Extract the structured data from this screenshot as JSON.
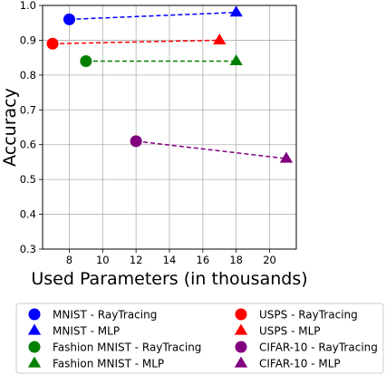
{
  "chart_data": {
    "type": "scatter",
    "title": "",
    "xlabel": "Used Parameters (in thousands)",
    "ylabel": "Accuracy",
    "xlim": [
      6.4,
      21.6
    ],
    "ylim": [
      0.3,
      1.0
    ],
    "xticks": [
      8,
      10,
      12,
      14,
      16,
      18,
      20
    ],
    "yticks": [
      0.3,
      0.4,
      0.5,
      0.6,
      0.7,
      0.8,
      0.9,
      1.0
    ],
    "grid": true,
    "legend_position": "bottom",
    "series": [
      {
        "name": "MNIST - RayTracing",
        "marker": "circle",
        "color": "#0000ff",
        "points": [
          {
            "x": 8,
            "y": 0.96
          }
        ]
      },
      {
        "name": "MNIST - MLP",
        "marker": "triangle",
        "color": "#0000ff",
        "points": [
          {
            "x": 18,
            "y": 0.98
          }
        ]
      },
      {
        "name": "Fashion MNIST - RayTracing",
        "marker": "circle",
        "color": "#008000",
        "points": [
          {
            "x": 9,
            "y": 0.84
          }
        ]
      },
      {
        "name": "Fashion MNIST - MLP",
        "marker": "triangle",
        "color": "#008000",
        "points": [
          {
            "x": 18,
            "y": 0.84
          }
        ]
      },
      {
        "name": "USPS - RayTracing",
        "marker": "circle",
        "color": "#ff0000",
        "points": [
          {
            "x": 7,
            "y": 0.89
          }
        ]
      },
      {
        "name": "USPS - MLP",
        "marker": "triangle",
        "color": "#ff0000",
        "points": [
          {
            "x": 17,
            "y": 0.9
          }
        ]
      },
      {
        "name": "CIFAR-10 - RayTracing",
        "marker": "circle",
        "color": "#800080",
        "points": [
          {
            "x": 12,
            "y": 0.61
          }
        ]
      },
      {
        "name": "CIFAR-10 - MLP",
        "marker": "triangle",
        "color": "#800080",
        "points": [
          {
            "x": 21,
            "y": 0.56
          }
        ]
      }
    ],
    "connectors": [
      {
        "from": "MNIST - RayTracing",
        "to": "MNIST - MLP",
        "color": "#0000ff",
        "style": "dashed"
      },
      {
        "from": "USPS - RayTracing",
        "to": "USPS - MLP",
        "color": "#ff0000",
        "style": "dashed"
      },
      {
        "from": "Fashion MNIST - RayTracing",
        "to": "Fashion MNIST - MLP",
        "color": "#008000",
        "style": "dashed"
      },
      {
        "from": "CIFAR-10 - RayTracing",
        "to": "CIFAR-10 - MLP",
        "color": "#800080",
        "style": "dashed"
      }
    ],
    "legend_order": [
      "MNIST - RayTracing",
      "USPS - RayTracing",
      "MNIST - MLP",
      "USPS - MLP",
      "Fashion MNIST - RayTracing",
      "CIFAR-10 - RayTracing",
      "Fashion MNIST - MLP",
      "CIFAR-10 - MLP"
    ]
  }
}
